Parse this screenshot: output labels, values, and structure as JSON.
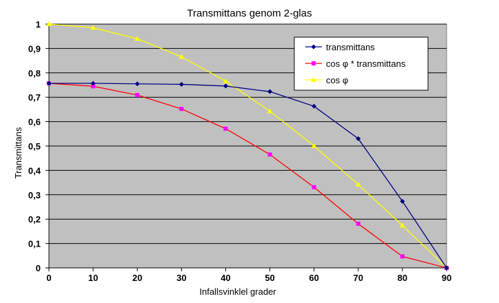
{
  "chart_data": {
    "type": "line",
    "title": "Transmittans genom 2-glas",
    "xlabel": "Infallsvinklel grader",
    "ylabel": "Transmittans",
    "xlim": [
      0,
      90
    ],
    "ylim": [
      0,
      1
    ],
    "x": [
      0,
      10,
      20,
      30,
      40,
      50,
      60,
      70,
      80,
      90
    ],
    "x_ticks": [
      "0",
      "10",
      "20",
      "30",
      "40",
      "50",
      "60",
      "70",
      "80",
      "90"
    ],
    "y_ticks": [
      "0",
      "0,1",
      "0,2",
      "0,3",
      "0,4",
      "0,5",
      "0,6",
      "0,7",
      "0,8",
      "0,9",
      "1"
    ],
    "grid": "horizontal",
    "legend_position": "top-right",
    "plot_background": "#c0c0c0",
    "series": [
      {
        "name": "transmittans",
        "color": "#000080",
        "marker": "diamond",
        "values": [
          0.757,
          0.757,
          0.755,
          0.753,
          0.746,
          0.723,
          0.663,
          0.53,
          0.273,
          0.0
        ]
      },
      {
        "name": "cos φ * transmittans",
        "color": "#ff00ff",
        "line_color": "#ff0000",
        "marker": "square",
        "values": [
          0.757,
          0.745,
          0.709,
          0.652,
          0.571,
          0.465,
          0.331,
          0.181,
          0.047,
          0.0
        ]
      },
      {
        "name": "cos φ",
        "color": "#ffff00",
        "marker": "triangle",
        "values": [
          1.0,
          0.985,
          0.94,
          0.866,
          0.766,
          0.643,
          0.5,
          0.342,
          0.174,
          0.0
        ]
      }
    ]
  }
}
